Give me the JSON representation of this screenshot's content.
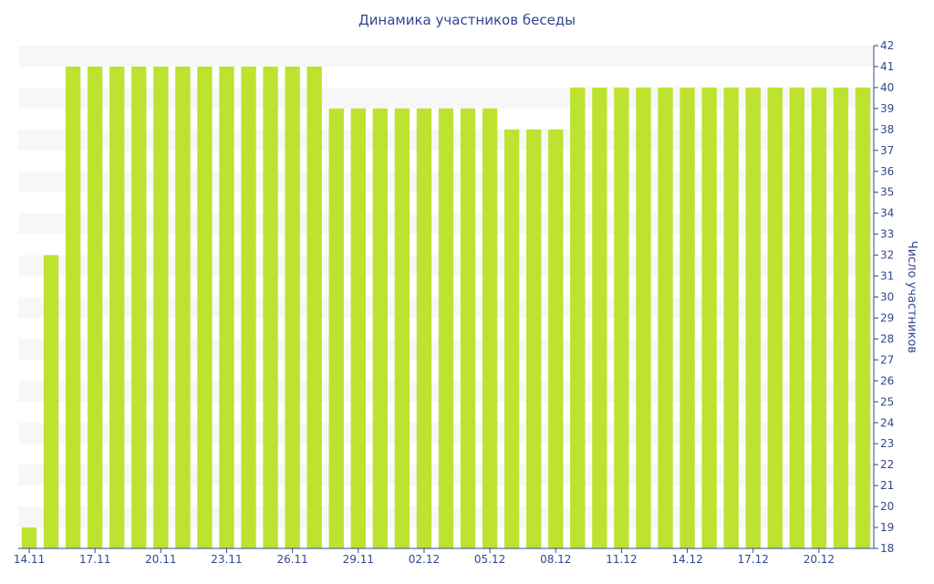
{
  "chart_data": {
    "type": "bar",
    "title": "Динамика участников беседы",
    "ylabel": "Число участников",
    "xlabel": "",
    "ylim": [
      18,
      42
    ],
    "y_ticks": [
      18,
      19,
      20,
      21,
      22,
      23,
      24,
      25,
      26,
      27,
      28,
      29,
      30,
      31,
      32,
      33,
      34,
      35,
      36,
      37,
      38,
      39,
      40,
      41,
      42
    ],
    "y_axis_side": "right",
    "grid": "horizontal bands",
    "legend": "none",
    "bar_color": "#bde22f",
    "band_color": "#f7f7f7",
    "text_color": "#33468e",
    "categories": [
      "14.11",
      "15.11",
      "16.11",
      "17.11",
      "18.11",
      "19.11",
      "20.11",
      "21.11",
      "22.11",
      "23.11",
      "24.11",
      "25.11",
      "26.11",
      "27.11",
      "28.11",
      "29.11",
      "30.11",
      "01.12",
      "02.12",
      "03.12",
      "04.12",
      "05.12",
      "06.12",
      "07.12",
      "08.12",
      "09.12",
      "10.12",
      "11.12",
      "12.12",
      "13.12",
      "14.12",
      "15.12",
      "16.12",
      "17.12",
      "18.12",
      "19.12",
      "20.12",
      "21.12",
      "22.12"
    ],
    "x_tick_labels": [
      "14.11",
      "17.11",
      "20.11",
      "23.11",
      "26.11",
      "29.11",
      "02.12",
      "05.12",
      "08.12",
      "11.12",
      "14.12",
      "17.12",
      "20.12"
    ],
    "values": [
      19,
      32,
      41,
      41,
      41,
      41,
      41,
      41,
      41,
      41,
      41,
      41,
      41,
      41,
      39,
      39,
      39,
      39,
      39,
      39,
      39,
      39,
      38,
      38,
      38,
      40,
      40,
      40,
      40,
      40,
      40,
      40,
      40,
      40,
      40,
      40,
      40,
      40,
      40
    ]
  }
}
